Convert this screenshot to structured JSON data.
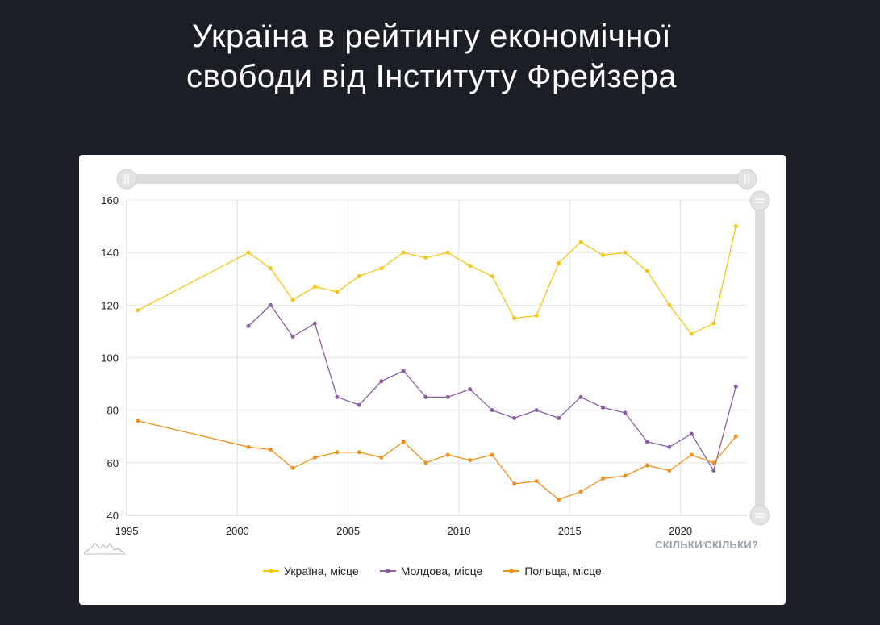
{
  "title_line1": "Україна в рейтингу економічної",
  "title_line2": "свободи від Інституту Фрейзера",
  "brand": {
    "left": "СКІЛЬКИ",
    "sep": "⁄",
    "right": "СКІЛЬКИ?"
  },
  "colors": {
    "background": "#1c1e26",
    "ukraine": "#f5c518",
    "moldova": "#8b5fa6",
    "poland": "#f0901e"
  },
  "chart_data": {
    "type": "line",
    "title": "Україна в рейтингу економічної свободи від Інституту Фрейзера",
    "xlabel": "",
    "ylabel": "",
    "xlim": [
      1995,
      2023
    ],
    "ylim": [
      40,
      160
    ],
    "x_ticks": [
      1995,
      2000,
      2005,
      2010,
      2015,
      2020
    ],
    "y_ticks": [
      40,
      60,
      80,
      100,
      120,
      140,
      160
    ],
    "grid": true,
    "legend_position": "bottom",
    "series": [
      {
        "name": "Україна, місце",
        "color": "#f5c518",
        "x": [
          1995.5,
          2000.5,
          2001.5,
          2002.5,
          2003.5,
          2004.5,
          2005.5,
          2006.5,
          2007.5,
          2008.5,
          2009.5,
          2010.5,
          2011.5,
          2012.5,
          2013.5,
          2014.5,
          2015.5,
          2016.5,
          2017.5,
          2018.5,
          2019.5,
          2020.5,
          2021.5,
          2022.5
        ],
        "y": [
          118,
          140,
          134,
          122,
          127,
          125,
          131,
          134,
          140,
          138,
          140,
          135,
          131,
          115,
          116,
          136,
          144,
          139,
          140,
          133,
          120,
          109,
          113,
          150
        ]
      },
      {
        "name": "Молдова, місце",
        "color": "#8b5fa6",
        "x": [
          2000.5,
          2001.5,
          2002.5,
          2003.5,
          2004.5,
          2005.5,
          2006.5,
          2007.5,
          2008.5,
          2009.5,
          2010.5,
          2011.5,
          2012.5,
          2013.5,
          2014.5,
          2015.5,
          2016.5,
          2017.5,
          2018.5,
          2019.5,
          2020.5,
          2021.5,
          2022.5
        ],
        "y": [
          112,
          120,
          108,
          113,
          85,
          82,
          91,
          95,
          85,
          85,
          88,
          80,
          77,
          80,
          77,
          85,
          81,
          79,
          68,
          66,
          71,
          57,
          89
        ]
      },
      {
        "name": "Польща, місце",
        "color": "#f0901e",
        "x": [
          1995.5,
          2000.5,
          2001.5,
          2002.5,
          2003.5,
          2004.5,
          2005.5,
          2006.5,
          2007.5,
          2008.5,
          2009.5,
          2010.5,
          2011.5,
          2012.5,
          2013.5,
          2014.5,
          2015.5,
          2016.5,
          2017.5,
          2018.5,
          2019.5,
          2020.5,
          2021.5,
          2022.5
        ],
        "y": [
          76,
          66,
          65,
          58,
          62,
          64,
          64,
          62,
          68,
          60,
          63,
          61,
          63,
          52,
          53,
          46,
          49,
          54,
          55,
          59,
          57,
          63,
          60,
          70
        ]
      }
    ]
  }
}
